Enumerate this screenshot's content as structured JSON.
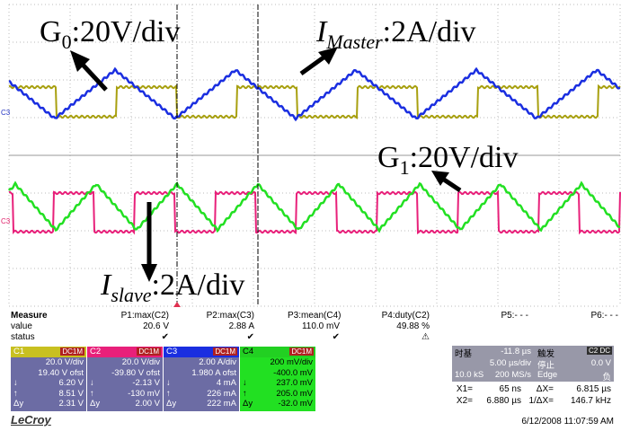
{
  "annotations": [
    {
      "base": "G",
      "sub": "0",
      "rest": ":20V/div"
    },
    {
      "base": "I",
      "sub": "Master",
      "rest": ":2A/div"
    },
    {
      "base": "G",
      "sub": "1",
      "rest": ":20V/div"
    },
    {
      "base": "I",
      "sub": "slave",
      "rest": ":2A/div"
    }
  ],
  "channel_markers": [
    "C3",
    "C3"
  ],
  "measure": {
    "headers": [
      "Measure",
      "P1:max(C2)",
      "P2:max(C3)",
      "P3:mean(C4)",
      "P4:duty(C2)",
      "P5:- - -",
      "P6:- - -"
    ],
    "value": [
      "value",
      "20.6 V",
      "2.88 A",
      "110.0 mV",
      "49.88 %"
    ],
    "status": [
      "status",
      "✔",
      "✔",
      "✔",
      "⚠"
    ]
  },
  "channels": [
    {
      "name": "C1",
      "badge": "DC1M",
      "rows": [
        [
          "20.0 V/div"
        ],
        [
          "19.40 V ofst"
        ],
        [
          "↓",
          "6.20 V"
        ],
        [
          "↑",
          "8.51 V"
        ],
        [
          "Δy",
          "2.31 V"
        ]
      ]
    },
    {
      "name": "C2",
      "badge": "DC1M",
      "rows": [
        [
          "20.0 V/div"
        ],
        [
          "-39.80 V ofst"
        ],
        [
          "↓",
          "-2.13 V"
        ],
        [
          "↑",
          "-130 mV"
        ],
        [
          "Δy",
          "2.00 V"
        ]
      ]
    },
    {
      "name": "C3",
      "badge": "DC1M",
      "rows": [
        [
          "2.00 A/div"
        ],
        [
          "1.980 A ofst"
        ],
        [
          "↓",
          "4 mA"
        ],
        [
          "↑",
          "226 mA"
        ],
        [
          "Δy",
          "222 mA"
        ]
      ]
    },
    {
      "name": "C4",
      "badge": "DC1M",
      "rows": [
        [
          "200 mV/div"
        ],
        [
          "-400.0 mV"
        ],
        [
          "↓",
          "237.0 mV"
        ],
        [
          "↑",
          "205.0 mV"
        ],
        [
          "Δy",
          "-32.0 mV"
        ]
      ]
    }
  ],
  "timebase": {
    "title": "时基",
    "delay": "-11.8 µs",
    "div": "5.00 µs/div",
    "samples": "10.0 kS",
    "rate": "200 MS/s"
  },
  "trigger": {
    "title": "触发",
    "badge": "C2 DC",
    "mode": "停止",
    "level": "0.0 V",
    "type": "Edge",
    "slope": "负"
  },
  "cursors": [
    [
      "X1=",
      "65 ns",
      "ΔX=",
      "6.815 µs"
    ],
    [
      "X2=",
      "6.880 µs",
      "1/ΔX=",
      "146.7 kHz"
    ]
  ],
  "brand": "LeCroy",
  "timestamp": "6/12/2008 11:07:59 AM"
}
